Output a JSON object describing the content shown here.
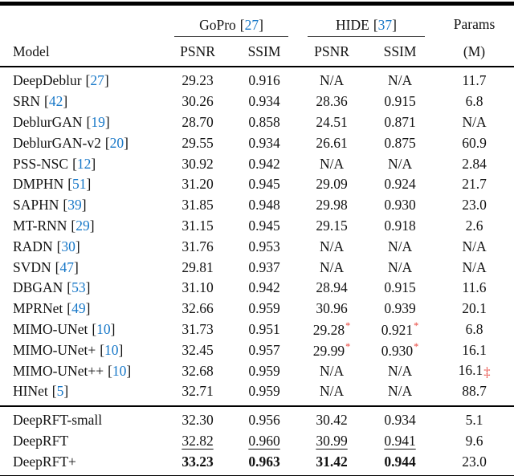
{
  "meta": {
    "background_color": "#ffffff",
    "text_color": "#121212",
    "cite_color": "#1878c8",
    "mark_color": "#e8443c"
  },
  "header": {
    "model_label": "Model",
    "bracket_open": "[",
    "bracket_close": "]",
    "groups": [
      {
        "label": "GoPro",
        "cite": "27"
      },
      {
        "label": "HIDE",
        "cite": "37"
      }
    ],
    "sub_columns": [
      "PSNR",
      "SSIM",
      "PSNR",
      "SSIM"
    ],
    "params_label": "Params",
    "params_unit": "(M)"
  },
  "rows": [
    {
      "model": "DeepDeblur",
      "cite": "27",
      "cells": [
        {
          "t": "29.23"
        },
        {
          "t": "0.916"
        },
        {
          "t": "N/A"
        },
        {
          "t": "N/A"
        },
        {
          "t": "11.7"
        }
      ]
    },
    {
      "model": "SRN",
      "cite": "42",
      "cells": [
        {
          "t": "30.26"
        },
        {
          "t": "0.934"
        },
        {
          "t": "28.36"
        },
        {
          "t": "0.915"
        },
        {
          "t": "6.8"
        }
      ]
    },
    {
      "model": "DeblurGAN",
      "cite": "19",
      "cells": [
        {
          "t": "28.70"
        },
        {
          "t": "0.858"
        },
        {
          "t": "24.51"
        },
        {
          "t": "0.871"
        },
        {
          "t": "N/A"
        }
      ]
    },
    {
      "model": "DeblurGAN-v2",
      "cite": "20",
      "cells": [
        {
          "t": "29.55"
        },
        {
          "t": "0.934"
        },
        {
          "t": "26.61"
        },
        {
          "t": "0.875"
        },
        {
          "t": "60.9"
        }
      ]
    },
    {
      "model": "PSS-NSC",
      "cite": "12",
      "cells": [
        {
          "t": "30.92"
        },
        {
          "t": "0.942"
        },
        {
          "t": "N/A"
        },
        {
          "t": "N/A"
        },
        {
          "t": "2.84"
        }
      ]
    },
    {
      "model": "DMPHN",
      "cite": "51",
      "cells": [
        {
          "t": "31.20"
        },
        {
          "t": "0.945"
        },
        {
          "t": "29.09"
        },
        {
          "t": "0.924"
        },
        {
          "t": "21.7"
        }
      ]
    },
    {
      "model": "SAPHN",
      "cite": "39",
      "cells": [
        {
          "t": "31.85"
        },
        {
          "t": "0.948"
        },
        {
          "t": "29.98"
        },
        {
          "t": "0.930"
        },
        {
          "t": "23.0"
        }
      ]
    },
    {
      "model": "MT-RNN",
      "cite": "29",
      "cells": [
        {
          "t": "31.15"
        },
        {
          "t": "0.945"
        },
        {
          "t": "29.15"
        },
        {
          "t": "0.918"
        },
        {
          "t": "2.6"
        }
      ]
    },
    {
      "model": "RADN",
      "cite": "30",
      "cells": [
        {
          "t": "31.76"
        },
        {
          "t": "0.953"
        },
        {
          "t": "N/A"
        },
        {
          "t": "N/A"
        },
        {
          "t": "N/A"
        }
      ]
    },
    {
      "model": "SVDN",
      "cite": "47",
      "cells": [
        {
          "t": "29.81"
        },
        {
          "t": "0.937"
        },
        {
          "t": "N/A"
        },
        {
          "t": "N/A"
        },
        {
          "t": "N/A"
        }
      ]
    },
    {
      "model": "DBGAN",
      "cite": "53",
      "cells": [
        {
          "t": "31.10"
        },
        {
          "t": "0.942"
        },
        {
          "t": "28.94"
        },
        {
          "t": "0.915"
        },
        {
          "t": "11.6"
        }
      ]
    },
    {
      "model": "MPRNet",
      "cite": "49",
      "cells": [
        {
          "t": "32.66"
        },
        {
          "t": "0.959"
        },
        {
          "t": "30.96"
        },
        {
          "t": "0.939"
        },
        {
          "t": "20.1"
        }
      ]
    },
    {
      "model": "MIMO-UNet",
      "cite": "10",
      "cells": [
        {
          "t": "31.73"
        },
        {
          "t": "0.951"
        },
        {
          "t": "29.28",
          "m": "*",
          "sup": true
        },
        {
          "t": "0.921",
          "m": "*",
          "sup": true
        },
        {
          "t": "6.8"
        }
      ]
    },
    {
      "model": "MIMO-UNet+",
      "cite": "10",
      "cells": [
        {
          "t": "32.45"
        },
        {
          "t": "0.957"
        },
        {
          "t": "29.99",
          "m": "*",
          "sup": true
        },
        {
          "t": "0.930",
          "m": "*",
          "sup": true
        },
        {
          "t": "16.1"
        }
      ]
    },
    {
      "model": "MIMO-UNet++",
      "cite": "10",
      "cells": [
        {
          "t": "32.68"
        },
        {
          "t": "0.959"
        },
        {
          "t": "N/A"
        },
        {
          "t": "N/A"
        },
        {
          "t": "16.1",
          "m": "‡"
        }
      ]
    },
    {
      "model": "HINet",
      "cite": "5",
      "cells": [
        {
          "t": "32.71"
        },
        {
          "t": "0.959"
        },
        {
          "t": "N/A"
        },
        {
          "t": "N/A"
        },
        {
          "t": "88.7"
        }
      ]
    }
  ],
  "footer_rows": [
    {
      "model": "DeepRFT-small",
      "cite": "",
      "cells": [
        {
          "t": "32.30"
        },
        {
          "t": "0.956"
        },
        {
          "t": "30.42"
        },
        {
          "t": "0.934"
        },
        {
          "t": "5.1"
        }
      ]
    },
    {
      "model": "DeepRFT",
      "cite": "",
      "cells": [
        {
          "t": "32.82",
          "u": true
        },
        {
          "t": "0.960",
          "u": true
        },
        {
          "t": "30.99",
          "u": true
        },
        {
          "t": "0.941",
          "u": true
        },
        {
          "t": "9.6"
        }
      ]
    },
    {
      "model": "DeepRFT+",
      "cite": "",
      "cells": [
        {
          "t": "33.23",
          "b": true
        },
        {
          "t": "0.963",
          "b": true
        },
        {
          "t": "31.42",
          "b": true
        },
        {
          "t": "0.944",
          "b": true
        },
        {
          "t": "23.0"
        }
      ]
    }
  ]
}
